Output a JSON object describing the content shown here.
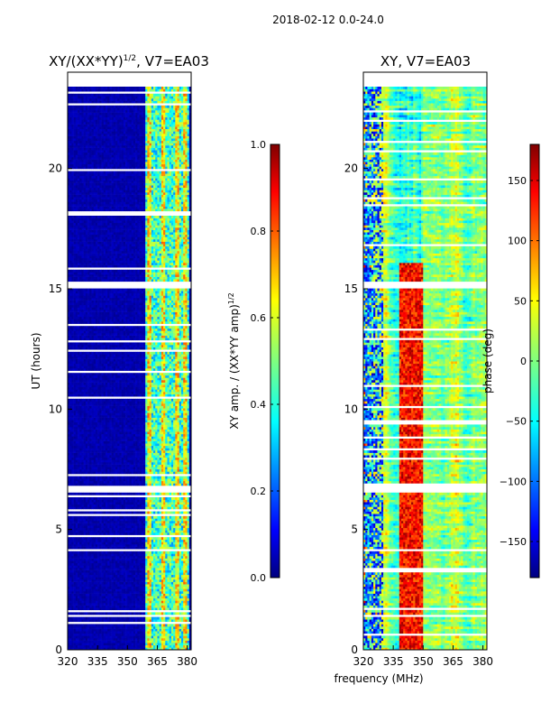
{
  "figure": {
    "suptitle": "2018-02-12 0.0-24.0",
    "xlabel_shared": "frequency (MHz)"
  },
  "colors": {
    "jet": [
      "#00007f",
      "#0000ff",
      "#007fff",
      "#00ffff",
      "#7fff7f",
      "#ffff00",
      "#ff7f00",
      "#ff0000",
      "#7f0000"
    ],
    "background": "#ffffff",
    "gap": "#ffffff"
  },
  "chart_data": [
    {
      "type": "heatmap",
      "title": "XY/(XX*YY)",
      "title_sup": "1/2",
      "title_tail": ", V7=EA03",
      "xlabel": "",
      "ylabel": "UT (hours)",
      "xlim": [
        320,
        382
      ],
      "ylim": [
        0,
        24
      ],
      "xticks": [
        "320",
        "335",
        "350",
        "365",
        "380"
      ],
      "xtick_values": [
        320,
        335,
        350,
        365,
        380
      ],
      "yticks": [
        "0",
        "5",
        "10",
        "15",
        "20"
      ],
      "ytick_values": [
        0,
        5,
        10,
        15,
        20
      ],
      "data_time_range": [
        0,
        23.4
      ],
      "low_value_region_mhz": [
        320,
        359
      ],
      "band_region_mhz": [
        359,
        380
      ],
      "band_peak_freqs_mhz": [
        361,
        368,
        375,
        379
      ],
      "dropout_hours": [
        [
          6.45,
          6.75
        ],
        [
          15.0,
          15.25
        ],
        [
          1.35,
          1.45
        ],
        [
          7.2,
          7.25
        ]
      ],
      "colorbar": {
        "label": "XY amp. / (XX*YY amp)",
        "label_sup": "1/2",
        "range": [
          0.0,
          1.0
        ],
        "ticks": [
          "0.0",
          "0.2",
          "0.4",
          "0.6",
          "0.8",
          "1.0"
        ],
        "tick_values": [
          0.0,
          0.2,
          0.4,
          0.6,
          0.8,
          1.0
        ]
      }
    },
    {
      "type": "heatmap",
      "title": "XY, V7=EA03",
      "xlabel": "frequency (MHz)",
      "ylabel": "",
      "xlim": [
        320,
        382
      ],
      "ylim": [
        0,
        24
      ],
      "xticks": [
        "320",
        "335",
        "350",
        "365",
        "380"
      ],
      "xtick_values": [
        320,
        335,
        350,
        365,
        380
      ],
      "yticks": [
        "0",
        "5",
        "10",
        "15",
        "20"
      ],
      "ytick_values": [
        0,
        5,
        10,
        15,
        20
      ],
      "data_time_range": [
        0,
        23.4
      ],
      "dropout_hours": [
        [
          6.45,
          6.75
        ],
        [
          15.0,
          15.25
        ],
        [
          1.35,
          1.45
        ]
      ],
      "colorbar": {
        "label": "phase (deg)",
        "range": [
          -180,
          180
        ],
        "ticks": [
          "−150",
          "−100",
          "−50",
          "0",
          "50",
          "100",
          "150"
        ],
        "tick_values": [
          -150,
          -100,
          -50,
          0,
          50,
          100,
          150
        ]
      }
    }
  ]
}
